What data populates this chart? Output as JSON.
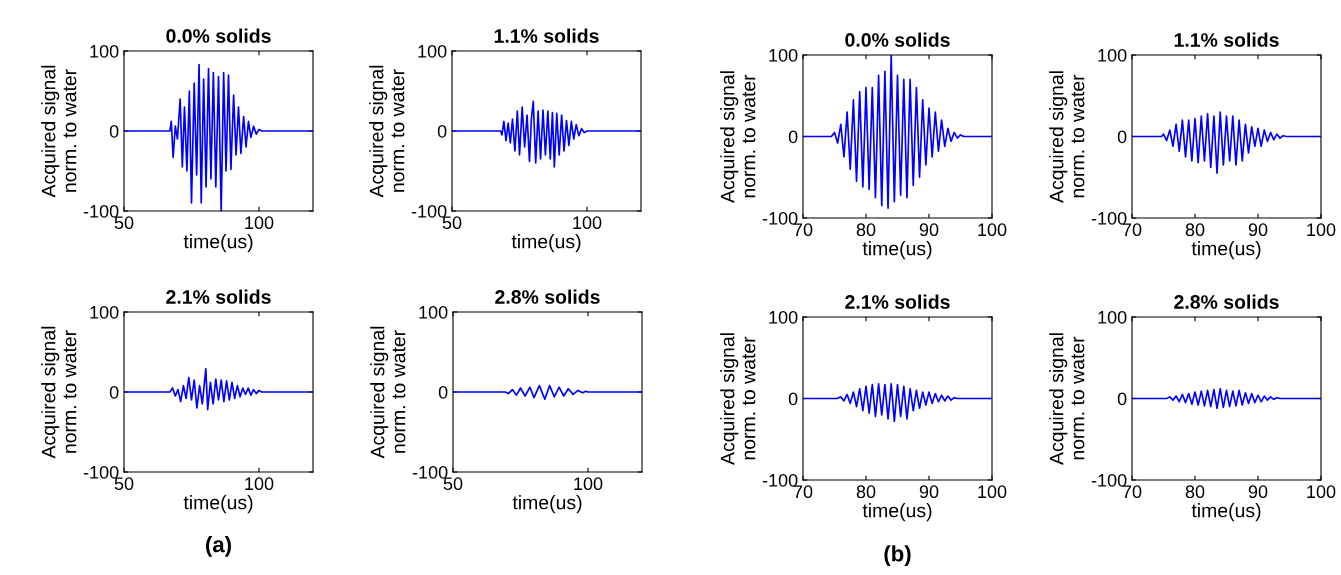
{
  "chart_data": [
    {
      "type": "line",
      "title": "0.0% solids",
      "xlabel": "time(us)",
      "ylabel": "Acquired signal\nnorm. to water",
      "color": "#0000ff",
      "xlim": [
        50,
        120
      ],
      "ylim": [
        -100,
        100
      ],
      "xticks": [
        50,
        100
      ],
      "yticks": [
        -100,
        0,
        100
      ],
      "x": [
        50,
        67,
        67.5,
        68.2,
        69,
        69.8,
        70.8,
        71.6,
        72.4,
        73.3,
        74.2,
        75,
        76,
        76.9,
        77.8,
        78.6,
        79.5,
        80.4,
        81.3,
        82.2,
        83.1,
        84,
        85,
        86,
        86.9,
        87.8,
        88.7,
        89.6,
        90.6,
        91.5,
        92.4,
        93.3,
        94.3,
        95.2,
        96.1,
        97,
        98,
        99,
        100,
        101,
        120
      ],
      "values": [
        0,
        0,
        12,
        -33,
        6,
        -10,
        40,
        -45,
        30,
        -50,
        50,
        -90,
        60,
        -55,
        83,
        -90,
        65,
        -70,
        78,
        -60,
        73,
        -70,
        68,
        -100,
        73,
        -50,
        70,
        -48,
        45,
        -30,
        30,
        -28,
        18,
        -20,
        12,
        -8,
        6,
        -4,
        2,
        0,
        0
      ]
    },
    {
      "type": "line",
      "title": "1.1% solids",
      "xlabel": "time(us)",
      "ylabel": "Acquired signal\nnorm. to water",
      "color": "#0000ff",
      "xlim": [
        50,
        120
      ],
      "ylim": [
        -100,
        100
      ],
      "xticks": [
        50,
        100
      ],
      "yticks": [
        -100,
        0,
        100
      ],
      "x": [
        50,
        68,
        68.5,
        69.2,
        70,
        70.8,
        71.6,
        72.4,
        73.3,
        74.2,
        75,
        76,
        76.9,
        77.8,
        78.7,
        79.4,
        80.1,
        81,
        81.9,
        82.8,
        83.7,
        84.6,
        85.5,
        86.4,
        87.2,
        87.9,
        88.8,
        89.7,
        90.6,
        91.5,
        92.4,
        93.3,
        94.2,
        95.1,
        96,
        97,
        98,
        99,
        100,
        120
      ],
      "values": [
        0,
        0,
        -5,
        12,
        -12,
        10,
        -15,
        15,
        -25,
        25,
        -30,
        30,
        -20,
        20,
        -38,
        15,
        37,
        -40,
        25,
        -35,
        26,
        -30,
        25,
        -35,
        23,
        -45,
        22,
        -30,
        20,
        -25,
        13,
        -18,
        12,
        -10,
        8,
        -6,
        3,
        -2,
        0,
        0
      ]
    },
    {
      "type": "line",
      "title": "2.1% solids",
      "xlabel": "time(us)",
      "ylabel": "Acquired signal\nnorm. to water",
      "color": "#0000ff",
      "xlim": [
        50,
        120
      ],
      "ylim": [
        -100,
        100
      ],
      "xticks": [
        50,
        100
      ],
      "yticks": [
        -100,
        0,
        100
      ],
      "annotations": [
        "(a)"
      ],
      "x": [
        50,
        67,
        68,
        69,
        70,
        71,
        72,
        73,
        74,
        75,
        76,
        77,
        78,
        79,
        80.3,
        81,
        82,
        83,
        84,
        85,
        86,
        87,
        88,
        89,
        90,
        91,
        92,
        93,
        94,
        95,
        96,
        97,
        98,
        99,
        100,
        101,
        120
      ],
      "values": [
        0,
        0,
        5,
        -5,
        3,
        -12,
        8,
        -8,
        18,
        -10,
        15,
        -20,
        8,
        -15,
        29,
        -22,
        12,
        -15,
        16,
        -10,
        15,
        -12,
        14,
        -10,
        12,
        -8,
        8,
        -6,
        5,
        -3,
        5,
        -4,
        3,
        -2,
        2,
        0,
        0
      ]
    },
    {
      "type": "line",
      "title": "2.8% solids",
      "xlabel": "time(us)",
      "ylabel": "Acquired signal\nnorm. to water",
      "color": "#0000ff",
      "xlim": [
        50,
        120
      ],
      "ylim": [
        -100,
        100
      ],
      "xticks": [
        50,
        100
      ],
      "yticks": [
        -100,
        0,
        100
      ],
      "x": [
        50,
        69.3,
        70.5,
        72,
        73.5,
        75,
        76.7,
        78.5,
        80,
        82,
        84,
        85.8,
        87.5,
        89.3,
        91,
        92.7,
        94.5,
        96.3,
        98,
        99.2,
        100,
        120
      ],
      "values": [
        0,
        0,
        -2,
        3,
        -4,
        5,
        -5,
        6,
        -7,
        8,
        -9,
        8,
        -6,
        6,
        -5,
        4,
        -3,
        2,
        -1,
        1,
        0,
        0
      ]
    },
    {
      "type": "line",
      "title": "0.0% solids",
      "xlabel": "time(us)",
      "ylabel": "Acquired signal\nnorm. to water",
      "color": "#0000ff",
      "xlim": [
        70,
        100
      ],
      "ylim": [
        -100,
        100
      ],
      "xticks": [
        70,
        80,
        90,
        100
      ],
      "yticks": [
        -100,
        0,
        100
      ],
      "x": [
        70,
        74.5,
        75,
        75.5,
        76,
        76.5,
        77,
        77.5,
        78,
        78.5,
        79,
        79.5,
        80,
        80.5,
        81,
        81.5,
        82,
        82.5,
        83,
        83.5,
        84,
        84.5,
        85,
        85.5,
        86,
        86.5,
        87,
        87.5,
        88,
        88.5,
        89,
        89.5,
        90,
        90.5,
        91,
        91.5,
        92,
        92.5,
        93,
        93.5,
        94,
        94.5,
        95,
        95.5,
        100
      ],
      "values": [
        0,
        0,
        5,
        -8,
        15,
        -25,
        30,
        -40,
        45,
        -55,
        55,
        -62,
        60,
        -65,
        60,
        -75,
        75,
        -85,
        80,
        -88,
        100,
        -80,
        75,
        -72,
        70,
        -75,
        70,
        -60,
        60,
        -50,
        45,
        -35,
        35,
        -25,
        30,
        -18,
        20,
        -12,
        10,
        -6,
        5,
        -2,
        2,
        0,
        0
      ]
    },
    {
      "type": "line",
      "title": "1.1% solids",
      "xlabel": "time(us)",
      "ylabel": "Acquired signal\nnorm. to water",
      "color": "#0000ff",
      "xlim": [
        70,
        100
      ],
      "ylim": [
        -100,
        100
      ],
      "xticks": [
        70,
        80,
        90,
        100
      ],
      "yticks": [
        -100,
        0,
        100
      ],
      "x": [
        70,
        74.7,
        75,
        75.5,
        76,
        76.5,
        77,
        77.5,
        78,
        78.5,
        79,
        79.5,
        80,
        80.5,
        81,
        81.5,
        82,
        82.5,
        83,
        83.5,
        84,
        84.5,
        85,
        85.5,
        86,
        86.5,
        87,
        87.5,
        88,
        88.5,
        89,
        89.5,
        90,
        90.5,
        91,
        91.5,
        92,
        92.5,
        93,
        93.5,
        94,
        94.5,
        100
      ],
      "values": [
        0,
        0,
        3,
        -5,
        8,
        -12,
        15,
        -18,
        20,
        -25,
        20,
        -30,
        22,
        -32,
        25,
        -30,
        28,
        -38,
        25,
        -45,
        30,
        -35,
        25,
        -30,
        25,
        -35,
        20,
        -30,
        15,
        -20,
        12,
        -12,
        10,
        -12,
        8,
        -6,
        5,
        -4,
        3,
        -2,
        1,
        0,
        0
      ]
    },
    {
      "type": "line",
      "title": "2.1% solids",
      "xlabel": "time(us)",
      "ylabel": "Acquired signal\nnorm. to water",
      "color": "#0000ff",
      "xlim": [
        70,
        100
      ],
      "ylim": [
        -100,
        100
      ],
      "xticks": [
        70,
        80,
        90,
        100
      ],
      "yticks": [
        -100,
        0,
        100
      ],
      "annotations": [
        "(b)"
      ],
      "x": [
        70,
        75.4,
        76,
        76.5,
        77,
        77.5,
        78,
        78.5,
        79,
        79.5,
        80,
        80.5,
        81,
        81.5,
        82,
        82.5,
        83,
        83.5,
        84,
        84.5,
        85,
        85.5,
        86,
        86.5,
        87,
        87.5,
        88,
        88.5,
        89,
        89.5,
        90,
        90.5,
        91,
        91.5,
        92,
        92.5,
        93,
        93.5,
        94,
        94.5,
        100
      ],
      "values": [
        0,
        0,
        2,
        -3,
        5,
        -6,
        8,
        -10,
        12,
        -15,
        15,
        -18,
        17,
        -22,
        18,
        -20,
        17,
        -25,
        18,
        -28,
        17,
        -22,
        15,
        -25,
        12,
        -15,
        10,
        -12,
        8,
        -8,
        8,
        -6,
        6,
        -4,
        4,
        -3,
        3,
        -2,
        1,
        0,
        0
      ]
    },
    {
      "type": "line",
      "title": "2.8% solids",
      "xlabel": "time(us)",
      "ylabel": "Acquired signal\nnorm. to water",
      "color": "#0000ff",
      "xlim": [
        70,
        100
      ],
      "ylim": [
        -100,
        100
      ],
      "xticks": [
        70,
        80,
        90,
        100
      ],
      "yticks": [
        -100,
        0,
        100
      ],
      "x": [
        70,
        75.5,
        76,
        76.5,
        77,
        77.5,
        78,
        78.5,
        79,
        79.5,
        80,
        80.5,
        81,
        81.5,
        82,
        82.5,
        83,
        83.5,
        84,
        84.5,
        85,
        85.5,
        86,
        86.5,
        87,
        87.5,
        88,
        88.5,
        89,
        89.5,
        90,
        90.5,
        91,
        91.5,
        92,
        92.5,
        93,
        93.5,
        100
      ],
      "values": [
        0,
        0,
        2,
        -2,
        3,
        -4,
        5,
        -5,
        6,
        -7,
        8,
        -8,
        9,
        -9,
        10,
        -10,
        11,
        -12,
        12,
        -11,
        10,
        -10,
        9,
        -9,
        10,
        -8,
        7,
        -6,
        6,
        -5,
        4,
        -4,
        3,
        -2,
        2,
        -1,
        1,
        0,
        0
      ]
    }
  ]
}
